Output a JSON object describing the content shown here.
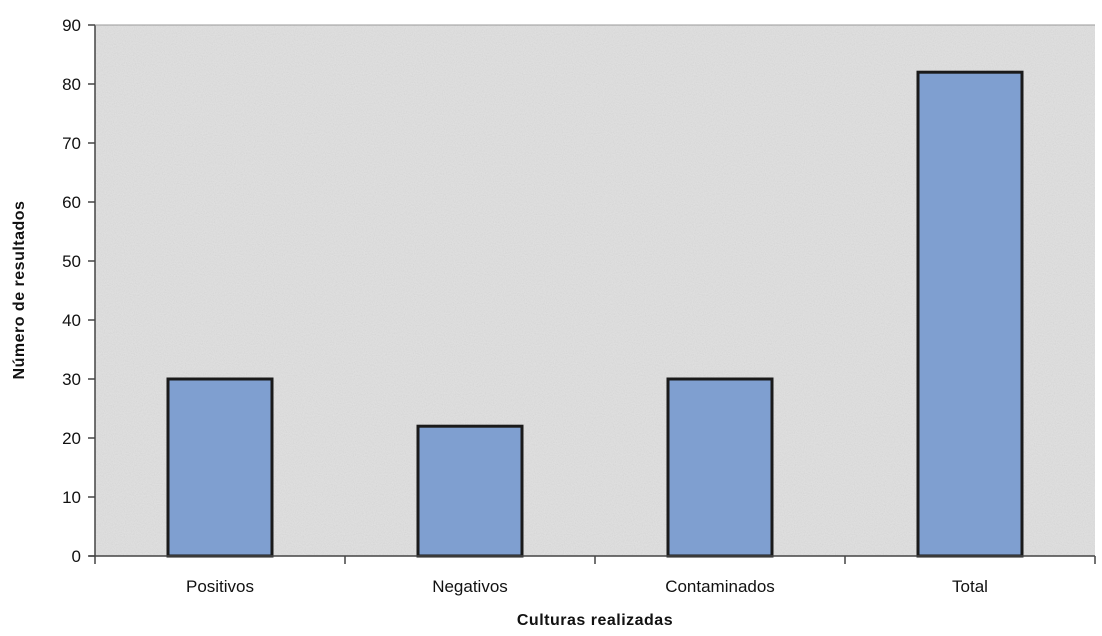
{
  "chart_data": {
    "type": "bar",
    "categories": [
      "Positivos",
      "Negativos",
      "Contaminados",
      "Total"
    ],
    "values": [
      30,
      22,
      30,
      82
    ],
    "xlabel": "Culturas realizadas",
    "ylabel": "Número de resultados",
    "ylim": [
      0,
      90
    ],
    "yticks": [
      0,
      10,
      20,
      30,
      40,
      50,
      60,
      70,
      80,
      90
    ],
    "grid": false,
    "legend": "none",
    "colors": {
      "bar_fill": "#7f9fd0",
      "bar_stroke": "#1a1a1a",
      "plot_background": "#e2e2e2",
      "axis": "#444444"
    }
  }
}
